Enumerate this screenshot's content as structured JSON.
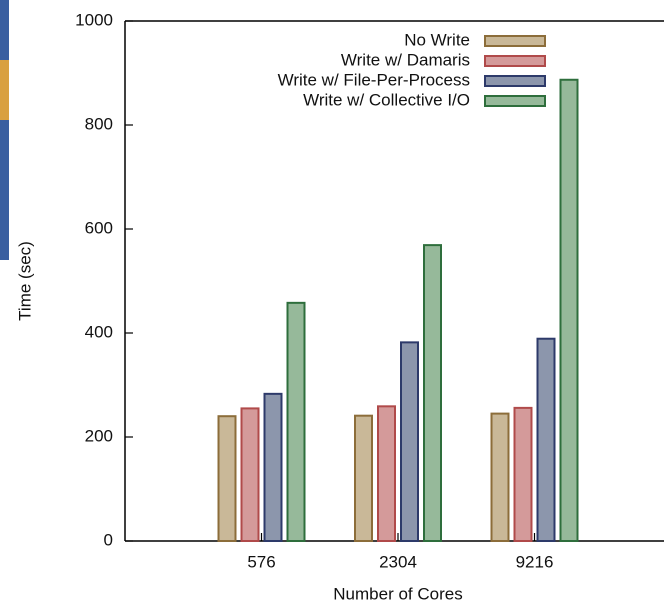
{
  "chart_data": {
    "type": "bar",
    "x_label": "Number of Cores",
    "y_label": "Time (sec)",
    "categories": [
      "576",
      "2304",
      "9216"
    ],
    "series": [
      {
        "name": "No Write",
        "color": "#c9b898",
        "values": [
          240,
          241,
          245
        ]
      },
      {
        "name": "Write w/ Damaris",
        "color": "#d49a9a",
        "values": [
          255,
          259,
          256
        ]
      },
      {
        "name": "Write w/ File-Per-Process",
        "color": "#8c96ac",
        "values": [
          283,
          382,
          389
        ]
      },
      {
        "name": "Write w/ Collective I/O",
        "color": "#96b99a",
        "values": [
          458,
          569,
          887
        ]
      }
    ],
    "ylim": [
      0,
      1000
    ],
    "yticks": [
      0,
      200,
      400,
      600,
      800,
      1000
    ]
  }
}
